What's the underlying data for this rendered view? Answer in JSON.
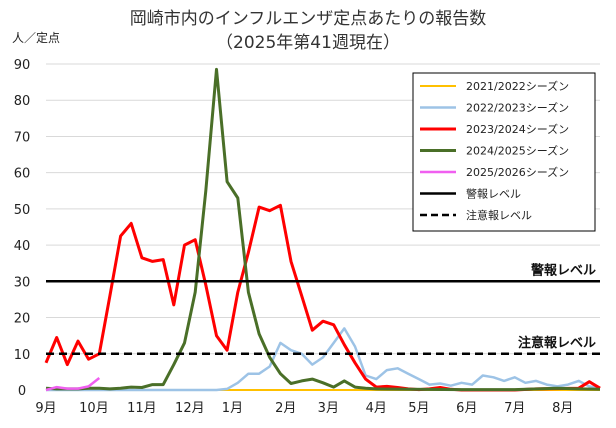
{
  "chart_data": {
    "type": "line",
    "title": "岡崎市内のインフルエンザ定点あたりの報告数",
    "subtitle": "（2025年第41週現在）",
    "ylabel": "人／定点",
    "xlabel": "",
    "ylim": [
      0,
      90
    ],
    "yticks": [
      0,
      10,
      20,
      30,
      40,
      50,
      60,
      70,
      80,
      90
    ],
    "xlim": [
      36,
      88
    ],
    "xticks": [
      {
        "label": "9月",
        "week": 36
      },
      {
        "label": "10月",
        "week": 40.5
      },
      {
        "label": "11月",
        "week": 45
      },
      {
        "label": "12月",
        "week": 49.5
      },
      {
        "label": "1月",
        "week": 53.5
      },
      {
        "label": "2月",
        "week": 58.5
      },
      {
        "label": "3月",
        "week": 62.5
      },
      {
        "label": "4月",
        "week": 67
      },
      {
        "label": "5月",
        "week": 71
      },
      {
        "label": "6月",
        "week": 75.5
      },
      {
        "label": "7月",
        "week": 80
      },
      {
        "label": "8月",
        "week": 84.5
      }
    ],
    "grid": true,
    "legend_position": "top-right",
    "series": [
      {
        "name": "2021/2022シーズン",
        "color": "#ffc000",
        "dash": false,
        "width": 2,
        "points": [
          [
            36,
            0
          ],
          [
            40,
            0
          ],
          [
            45,
            0
          ],
          [
            50,
            0
          ],
          [
            55,
            0
          ],
          [
            60,
            0
          ],
          [
            65,
            0
          ],
          [
            70,
            0
          ],
          [
            75,
            0
          ],
          [
            80,
            0
          ],
          [
            86,
            0
          ],
          [
            88,
            0
          ]
        ]
      },
      {
        "name": "2022/2023シーズン",
        "color": "#9dc3e6",
        "dash": false,
        "width": 2.5,
        "points": [
          [
            36,
            0
          ],
          [
            40,
            0
          ],
          [
            45,
            0
          ],
          [
            50,
            0
          ],
          [
            52,
            0
          ],
          [
            53,
            0.3
          ],
          [
            54,
            2
          ],
          [
            55,
            4.5
          ],
          [
            56,
            4.5
          ],
          [
            57,
            6.5
          ],
          [
            58,
            13
          ],
          [
            59,
            11
          ],
          [
            60,
            10
          ],
          [
            61,
            7
          ],
          [
            62,
            9
          ],
          [
            63,
            13
          ],
          [
            64,
            17
          ],
          [
            65,
            12
          ],
          [
            66,
            4
          ],
          [
            67,
            3
          ],
          [
            68,
            5.5
          ],
          [
            69,
            6
          ],
          [
            70,
            4.5
          ],
          [
            71,
            3
          ],
          [
            72,
            1.5
          ],
          [
            73,
            1.8
          ],
          [
            74,
            1.2
          ],
          [
            75,
            2
          ],
          [
            76,
            1.5
          ],
          [
            77,
            4
          ],
          [
            78,
            3.5
          ],
          [
            79,
            2.5
          ],
          [
            80,
            3.5
          ],
          [
            81,
            2
          ],
          [
            82,
            2.5
          ],
          [
            83,
            1.5
          ],
          [
            84,
            1
          ],
          [
            85,
            1.5
          ],
          [
            86,
            2.5
          ],
          [
            87,
            1
          ],
          [
            88,
            0.5
          ]
        ]
      },
      {
        "name": "2023/2024シーズン",
        "color": "#ff0000",
        "dash": false,
        "width": 3,
        "points": [
          [
            36,
            7.5
          ],
          [
            37,
            14.5
          ],
          [
            38,
            7
          ],
          [
            39,
            13.5
          ],
          [
            40,
            8.5
          ],
          [
            41,
            10
          ],
          [
            42,
            26
          ],
          [
            43,
            42.5
          ],
          [
            44,
            46
          ],
          [
            45,
            36.5
          ],
          [
            46,
            35.5
          ],
          [
            47,
            36
          ],
          [
            48,
            23.5
          ],
          [
            49,
            40
          ],
          [
            50,
            41.5
          ],
          [
            51,
            29
          ],
          [
            52,
            15
          ],
          [
            53,
            11
          ],
          [
            54,
            27
          ],
          [
            55,
            38
          ],
          [
            56,
            50.5
          ],
          [
            57,
            49.5
          ],
          [
            58,
            51
          ],
          [
            59,
            35.5
          ],
          [
            60,
            26
          ],
          [
            61,
            16.5
          ],
          [
            62,
            19
          ],
          [
            63,
            18
          ],
          [
            64,
            12.5
          ],
          [
            65,
            7.5
          ],
          [
            66,
            3
          ],
          [
            67,
            0.8
          ],
          [
            68,
            1
          ],
          [
            69,
            0.7
          ],
          [
            70,
            0.3
          ],
          [
            71,
            0.1
          ],
          [
            72,
            0.3
          ],
          [
            73,
            0.7
          ],
          [
            74,
            0.2
          ],
          [
            75,
            0
          ],
          [
            80,
            0
          ],
          [
            82,
            0.3
          ],
          [
            86,
            0.5
          ],
          [
            87,
            2.3
          ],
          [
            88,
            0.5
          ]
        ]
      },
      {
        "name": "2024/2025シーズン",
        "color": "#4a6f28",
        "dash": false,
        "width": 3,
        "points": [
          [
            36,
            0.5
          ],
          [
            37,
            0.3
          ],
          [
            38,
            0.3
          ],
          [
            39,
            0.3
          ],
          [
            40,
            0.5
          ],
          [
            41,
            0.5
          ],
          [
            42,
            0.3
          ],
          [
            43,
            0.5
          ],
          [
            44,
            0.8
          ],
          [
            45,
            0.7
          ],
          [
            46,
            1.5
          ],
          [
            47,
            1.5
          ],
          [
            48,
            7
          ],
          [
            49,
            13
          ],
          [
            50,
            27
          ],
          [
            51,
            55
          ],
          [
            52,
            88.5
          ],
          [
            53,
            57.5
          ],
          [
            54,
            53
          ],
          [
            55,
            27
          ],
          [
            56,
            15.5
          ],
          [
            57,
            9
          ],
          [
            58,
            4.5
          ],
          [
            59,
            1.8
          ],
          [
            60,
            2.5
          ],
          [
            61,
            3
          ],
          [
            62,
            2
          ],
          [
            63,
            0.8
          ],
          [
            64,
            2.5
          ],
          [
            65,
            0.8
          ],
          [
            66,
            0.5
          ],
          [
            67,
            0.3
          ],
          [
            70,
            0.2
          ],
          [
            75,
            0.1
          ],
          [
            80,
            0.1
          ],
          [
            84,
            0.5
          ],
          [
            86,
            0.3
          ],
          [
            88,
            0.2
          ]
        ]
      },
      {
        "name": "2025/2026シーズン",
        "color": "#f05ff0",
        "dash": false,
        "width": 2.5,
        "points": [
          [
            36,
            0
          ],
          [
            37,
            0.8
          ],
          [
            38,
            0.4
          ],
          [
            39,
            0.4
          ],
          [
            40,
            1
          ],
          [
            41,
            3.3
          ]
        ]
      },
      {
        "name": "警報レベル",
        "color": "#000000",
        "dash": false,
        "width": 2.5,
        "points": [
          [
            36,
            30
          ],
          [
            88,
            30
          ]
        ]
      },
      {
        "name": "注意報レベル",
        "color": "#000000",
        "dash": true,
        "width": 2.5,
        "points": [
          [
            36,
            10
          ],
          [
            88,
            10
          ]
        ]
      }
    ],
    "annotations": [
      {
        "text": "警報レベル",
        "x": 88,
        "y": 30
      },
      {
        "text": "注意報レベル",
        "x": 88,
        "y": 10
      }
    ]
  }
}
